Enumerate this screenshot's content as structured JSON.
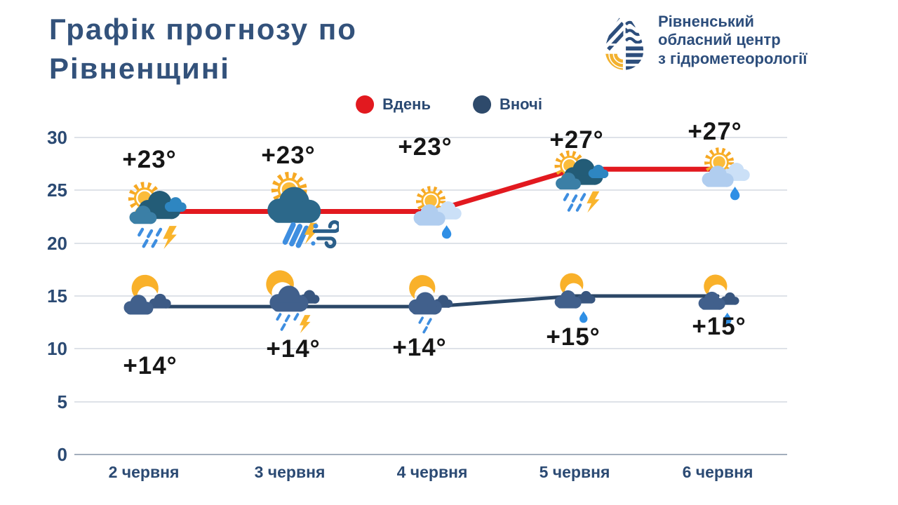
{
  "title": "Графік прогнозу по Рівненщині",
  "logo": {
    "org_lines": [
      "Рівненський",
      "обласний центр",
      "з гідрометеорології"
    ]
  },
  "legend": [
    {
      "label": "Вдень",
      "color": "#E2191F"
    },
    {
      "label": "Вночі",
      "color": "#2E4A6B"
    }
  ],
  "chart_data": {
    "type": "line",
    "categories": [
      "2 червня",
      "3 червня",
      "4 червня",
      "5 червня",
      "6 червня"
    ],
    "series": [
      {
        "name": "Вдень",
        "color": "#E2191F",
        "values": [
          23,
          23,
          23,
          27,
          27
        ],
        "labels": [
          "+23°",
          "+23°",
          "+23°",
          "+27°",
          "+27°"
        ]
      },
      {
        "name": "Вночі",
        "color": "#2B4767",
        "values": [
          14,
          14,
          14,
          15,
          15
        ],
        "labels": [
          "+14°",
          "+14°",
          "+14°",
          "+15°",
          "+15°"
        ]
      }
    ],
    "ylim": [
      0,
      30
    ],
    "yticks": [
      30,
      25,
      20,
      15,
      10,
      5,
      0
    ],
    "grid": true,
    "legend_position": "top"
  },
  "icons": {
    "day": [
      "sun-clouds-rain-lightning-icon",
      "sun-cloud-heavy-rain-lightning-wind-icon",
      "sun-light-cloud-raindrop-icon",
      "sun-clouds-rain-lightning-icon",
      "sun-light-cloud-raindrop-icon"
    ],
    "night": [
      "moon-clouds-icon",
      "moon-clouds-rain-lightning-icon",
      "moon-clouds-rain-icon",
      "moon-cloud-raindrop-icon",
      "moon-cloud-raindrop-icon"
    ]
  },
  "colors": {
    "title_navy": "#33527B",
    "axis_navy": "#2B4A73",
    "day_red": "#E2191F",
    "night_navy": "#2B4767",
    "temp_black": "#161616"
  }
}
